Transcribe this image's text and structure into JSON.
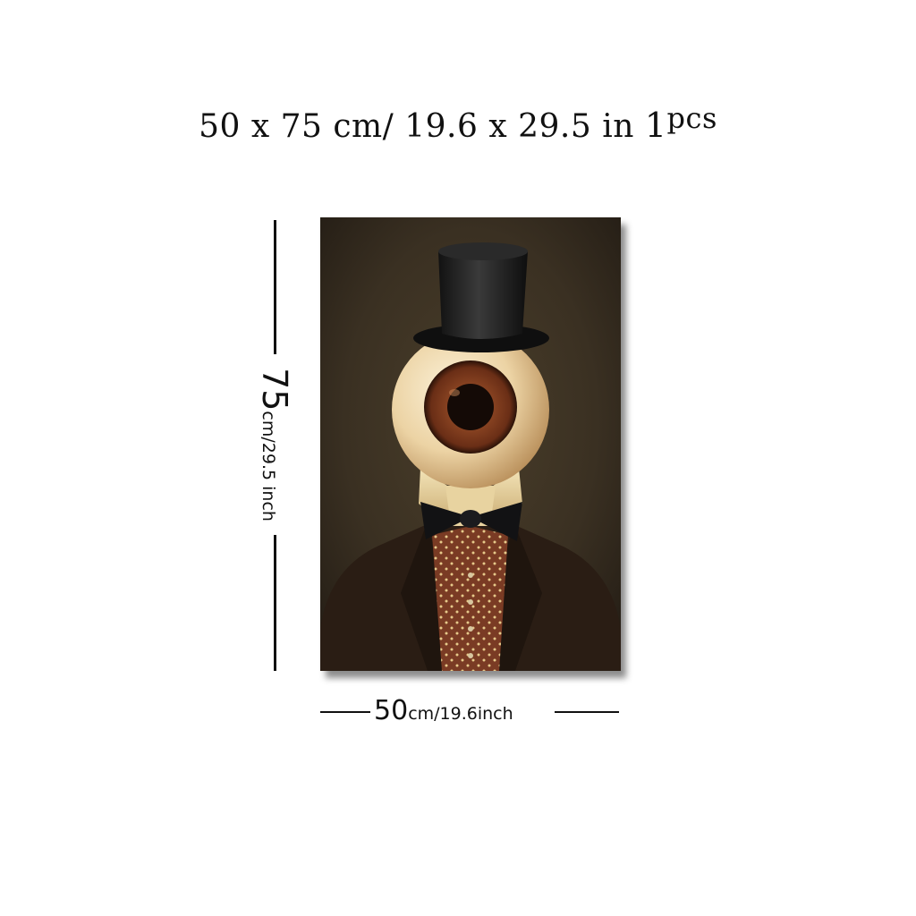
{
  "headline": {
    "dims": "50 x 75 cm/ 19.6  x  29.5 in ",
    "qty_number": "1",
    "qty_unit": "pcs"
  },
  "height_dimension": {
    "value": "75",
    "unit_text": "cm/29.5 inch"
  },
  "width_dimension": {
    "value": "50",
    "unit_text": "cm/19.6inch"
  },
  "colors": {
    "background": "#ffffff",
    "painting_bg": "#3b3122",
    "coat": "#2a1d14",
    "iris": "#7a3a1c",
    "vest": "#7a3b24"
  }
}
